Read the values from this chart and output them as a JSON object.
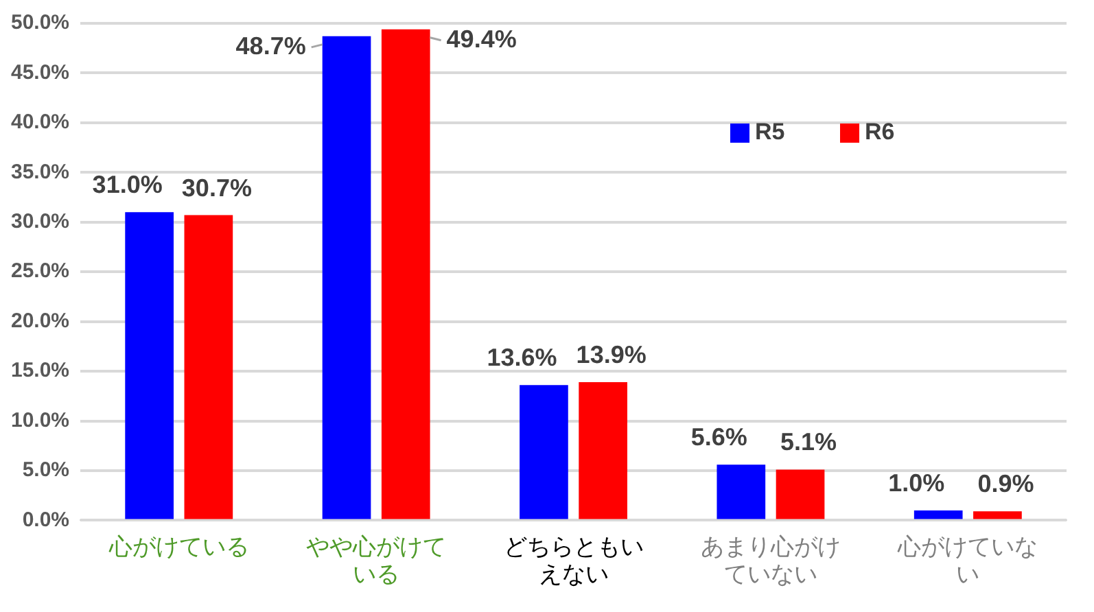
{
  "chart_data": {
    "type": "bar",
    "categories": [
      "心がけている",
      "やや心がけている",
      "どちらともいえない",
      "あまり心がけていない",
      "心がけていない"
    ],
    "series": [
      {
        "name": "R5",
        "color": "#0000ff",
        "values": [
          31.0,
          48.7,
          13.6,
          5.6,
          1.0
        ],
        "value_labels": [
          "31.0%",
          "48.7%",
          "13.6%",
          "5.6%",
          "1.0%"
        ]
      },
      {
        "name": "R6",
        "color": "#ff0000",
        "values": [
          30.7,
          49.4,
          13.9,
          5.1,
          0.9
        ],
        "value_labels": [
          "30.7%",
          "49.4%",
          "13.9%",
          "5.1%",
          "0.9%"
        ]
      }
    ],
    "ylim": [
      0,
      50
    ],
    "yticks": [
      {
        "value": 0,
        "label": "0.0%"
      },
      {
        "value": 5,
        "label": "5.0%"
      },
      {
        "value": 10,
        "label": "10.0%"
      },
      {
        "value": 15,
        "label": "15.0%"
      },
      {
        "value": 20,
        "label": "20.0%"
      },
      {
        "value": 25,
        "label": "25.0%"
      },
      {
        "value": 30,
        "label": "30.0%"
      },
      {
        "value": 35,
        "label": "35.0%"
      },
      {
        "value": 40,
        "label": "40.0%"
      },
      {
        "value": 45,
        "label": "45.0%"
      },
      {
        "value": 50,
        "label": "50.0%"
      }
    ],
    "grid": "y",
    "legend": "top right"
  }
}
